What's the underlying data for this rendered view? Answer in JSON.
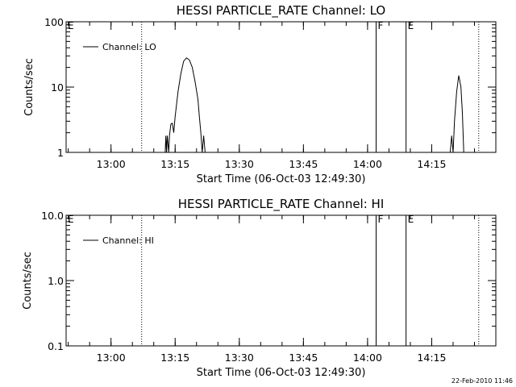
{
  "chart_data": [
    {
      "type": "line",
      "title": "HESSI PARTICLE_RATE Channel: LO",
      "xlabel": "Start Time (06-Oct-03 12:49:30)",
      "ylabel": "Counts/sec",
      "y_scale": "log",
      "ylim": [
        1,
        100
      ],
      "y_ticks": [
        "1",
        "10",
        "100"
      ],
      "xlim": [
        "12:49:30",
        "14:30:00"
      ],
      "x_ticks": [
        "13:00",
        "13:15",
        "13:30",
        "13:45",
        "14:00",
        "14:15"
      ],
      "grid": false,
      "legend_position": "top-left",
      "series": [
        {
          "name": "Channel: LO",
          "points": [
            [
              "13:12:40",
              1.0
            ],
            [
              "13:12:50",
              1.8
            ],
            [
              "13:13:00",
              1.0
            ],
            [
              "13:13:10",
              1.8
            ],
            [
              "13:13:30",
              1.0
            ],
            [
              "13:13:40",
              1.8
            ],
            [
              "13:14:00",
              2.7
            ],
            [
              "13:14:20",
              2.8
            ],
            [
              "13:14:40",
              2.0
            ],
            [
              "13:15:00",
              3.5
            ],
            [
              "13:15:40",
              8.5
            ],
            [
              "13:16:20",
              16
            ],
            [
              "13:17:00",
              25
            ],
            [
              "13:17:40",
              28
            ],
            [
              "13:18:20",
              26
            ],
            [
              "13:19:00",
              20
            ],
            [
              "13:19:40",
              12
            ],
            [
              "13:20:20",
              6.5
            ],
            [
              "13:20:40",
              3.5
            ],
            [
              "13:21:00",
              2.0
            ],
            [
              "13:21:20",
              1.0
            ],
            [
              "13:21:40",
              1.8
            ],
            [
              "13:22:00",
              1.0
            ],
            [
              "14:19:20",
              1.0
            ],
            [
              "14:19:40",
              1.8
            ],
            [
              "14:20:00",
              1.0
            ],
            [
              "14:20:20",
              3.0
            ],
            [
              "14:20:50",
              8.5
            ],
            [
              "14:21:20",
              15
            ],
            [
              "14:21:50",
              10
            ],
            [
              "14:22:10",
              4.0
            ],
            [
              "14:22:30",
              1.0
            ]
          ]
        }
      ],
      "markers": [
        {
          "label": "E",
          "time": "12:49:30",
          "style": "dotted"
        },
        {
          "label": "",
          "time": "13:07:10",
          "style": "dotted"
        },
        {
          "label": "F",
          "time": "14:02:00",
          "style": "solid"
        },
        {
          "label": "E",
          "time": "14:09:00",
          "style": "solid"
        },
        {
          "label": "",
          "time": "14:26:00",
          "style": "dotted"
        }
      ]
    },
    {
      "type": "line",
      "title": "HESSI PARTICLE_RATE Channel: HI",
      "xlabel": "Start Time (06-Oct-03 12:49:30)",
      "ylabel": "Counts/sec",
      "y_scale": "log",
      "ylim": [
        0.1,
        10
      ],
      "y_ticks": [
        "0.1",
        "1.0",
        "10.0"
      ],
      "xlim": [
        "12:49:30",
        "14:30:00"
      ],
      "x_ticks": [
        "13:00",
        "13:15",
        "13:30",
        "13:45",
        "14:00",
        "14:15"
      ],
      "grid": false,
      "legend_position": "top-left",
      "series": [
        {
          "name": "Channel: HI",
          "points": []
        }
      ],
      "markers": [
        {
          "label": "E",
          "time": "12:49:30",
          "style": "dotted"
        },
        {
          "label": "",
          "time": "13:07:10",
          "style": "dotted"
        },
        {
          "label": "F",
          "time": "14:02:00",
          "style": "solid"
        },
        {
          "label": "E",
          "time": "14:09:00",
          "style": "solid"
        },
        {
          "label": "",
          "time": "14:26:00",
          "style": "dotted"
        }
      ]
    }
  ],
  "footer": {
    "timestamp": "22-Feb-2010 11:46"
  }
}
